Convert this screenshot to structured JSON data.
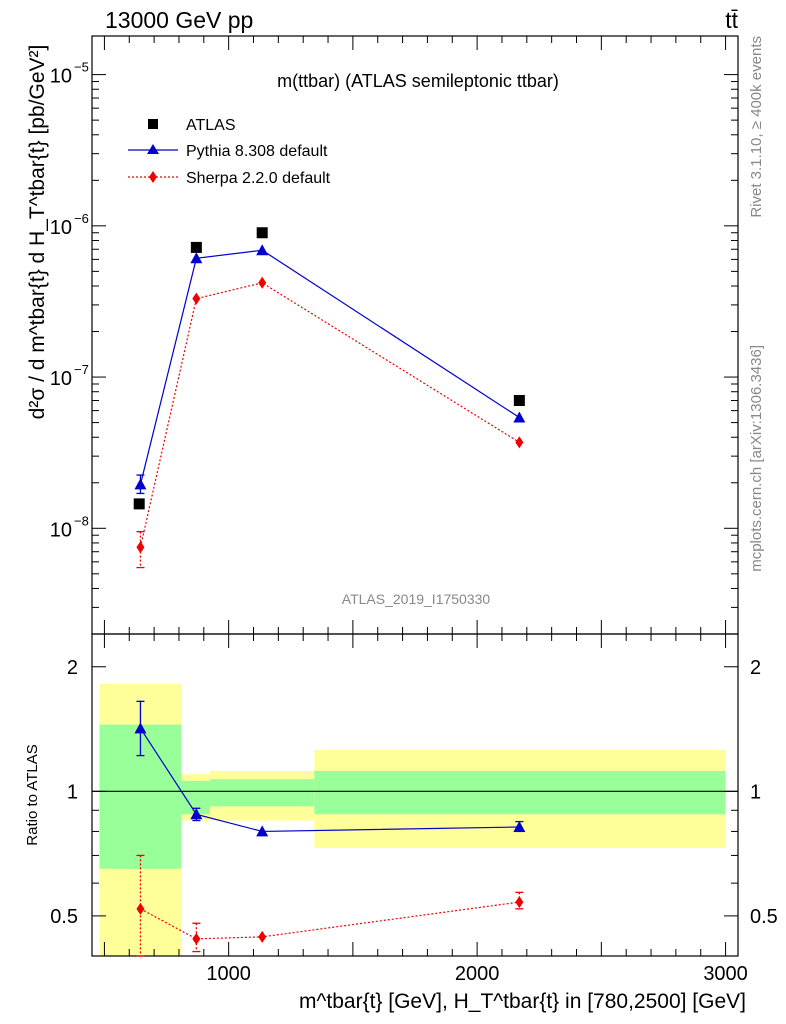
{
  "header": {
    "left": "13000 GeV pp",
    "right": "tt̄"
  },
  "side_labels": {
    "rivet": "Rivet 3.1.10, ≥ 400k events",
    "mcplots": "mcplots.cern.ch [arXiv:1306.3436]"
  },
  "chart_data": [
    {
      "type": "scatter",
      "panel": "main",
      "title": "m(ttbar) (ATLAS semileptonic ttbar)",
      "watermark": "ATLAS_2019_I1750330",
      "ylabel": "d²σ / d m^tbar{t} d H_T^tbar{t} [pb/GeV²]",
      "yscale": "log",
      "ylim": [
        2e-09,
        1.8e-05
      ],
      "xlim": [
        450,
        3050
      ],
      "y_ticks": [
        {
          "value": 1e-08,
          "label": "10",
          "exp": "−8"
        },
        {
          "value": 1e-07,
          "label": "10",
          "exp": "−7"
        },
        {
          "value": 1e-06,
          "label": "10",
          "exp": "−6"
        },
        {
          "value": 1e-05,
          "label": "10",
          "exp": "−5"
        }
      ],
      "legend_position": "top-left",
      "series": [
        {
          "name": "ATLAS",
          "style": "square-marker",
          "color": "#000000",
          "points": [
            {
              "x": 640,
              "y": 1.45e-08
            },
            {
              "x": 870,
              "y": 7.2e-07
            },
            {
              "x": 1135,
              "y": 9e-07
            },
            {
              "x": 2170,
              "y": 7e-08
            }
          ]
        },
        {
          "name": "Pythia 8.308 default",
          "style": "triangle-line",
          "color": "#0000cc",
          "points": [
            {
              "x": 645,
              "y": 1.95e-08,
              "ylo": 1.7e-08,
              "yhi": 2.25e-08
            },
            {
              "x": 870,
              "y": 6.1e-07
            },
            {
              "x": 1135,
              "y": 6.9e-07
            },
            {
              "x": 2170,
              "y": 5.4e-08
            }
          ]
        },
        {
          "name": "Sherpa 2.2.0 default",
          "style": "diamond-dotted",
          "color": "#ee0000",
          "points": [
            {
              "x": 645,
              "y": 7.5e-09,
              "ylo": 5.5e-09,
              "yhi": 9.5e-09
            },
            {
              "x": 870,
              "y": 3.3e-07
            },
            {
              "x": 1135,
              "y": 4.2e-07
            },
            {
              "x": 2170,
              "y": 3.7e-08
            }
          ]
        }
      ]
    },
    {
      "type": "scatter",
      "panel": "ratio",
      "ylabel": "Ratio to ATLAS",
      "xlabel": "m^tbar{t} [GeV], H_T^tbar{t} in [780,2500] [GeV]",
      "yscale": "log",
      "ylim": [
        0.4,
        2.4
      ],
      "xlim": [
        450,
        3050
      ],
      "y_ticks": [
        {
          "value": 0.5,
          "label": "0.5"
        },
        {
          "value": 1,
          "label": "1"
        },
        {
          "value": 2,
          "label": "2"
        }
      ],
      "x_ticks": [
        {
          "value": 1000,
          "label": "1000"
        },
        {
          "value": 2000,
          "label": "2000"
        },
        {
          "value": 3000,
          "label": "3000"
        }
      ],
      "uncertainty_bands": [
        {
          "x0": 480,
          "x1": 810,
          "stat_lo": 0.65,
          "stat_hi": 1.45,
          "tot_lo": 0.4,
          "tot_hi": 1.82
        },
        {
          "x0": 810,
          "x1": 925,
          "stat_lo": 0.88,
          "stat_hi": 1.06,
          "tot_lo": 0.85,
          "tot_hi": 1.1
        },
        {
          "x0": 925,
          "x1": 1345,
          "stat_lo": 0.92,
          "stat_hi": 1.07,
          "tot_lo": 0.85,
          "tot_hi": 1.12
        },
        {
          "x0": 1345,
          "x1": 3000,
          "stat_lo": 0.88,
          "stat_hi": 1.12,
          "tot_lo": 0.73,
          "tot_hi": 1.26
        }
      ],
      "series": [
        {
          "name": "Pythia 8.308 default",
          "style": "triangle-line",
          "color": "#0000cc",
          "points": [
            {
              "x": 645,
              "y": 1.42,
              "ylo": 1.22,
              "yhi": 1.65
            },
            {
              "x": 870,
              "y": 0.88,
              "ylo": 0.85,
              "yhi": 0.91
            },
            {
              "x": 1135,
              "y": 0.8
            },
            {
              "x": 2170,
              "y": 0.82,
              "ylo": 0.8,
              "yhi": 0.845
            }
          ]
        },
        {
          "name": "Sherpa 2.2.0 default",
          "style": "diamond-dotted",
          "color": "#ee0000",
          "points": [
            {
              "x": 645,
              "y": 0.52,
              "ylo": 0.4,
              "yhi": 0.7
            },
            {
              "x": 870,
              "y": 0.44,
              "ylo": 0.41,
              "yhi": 0.48
            },
            {
              "x": 1135,
              "y": 0.445
            },
            {
              "x": 2170,
              "y": 0.54,
              "ylo": 0.52,
              "yhi": 0.57
            }
          ]
        }
      ]
    }
  ]
}
